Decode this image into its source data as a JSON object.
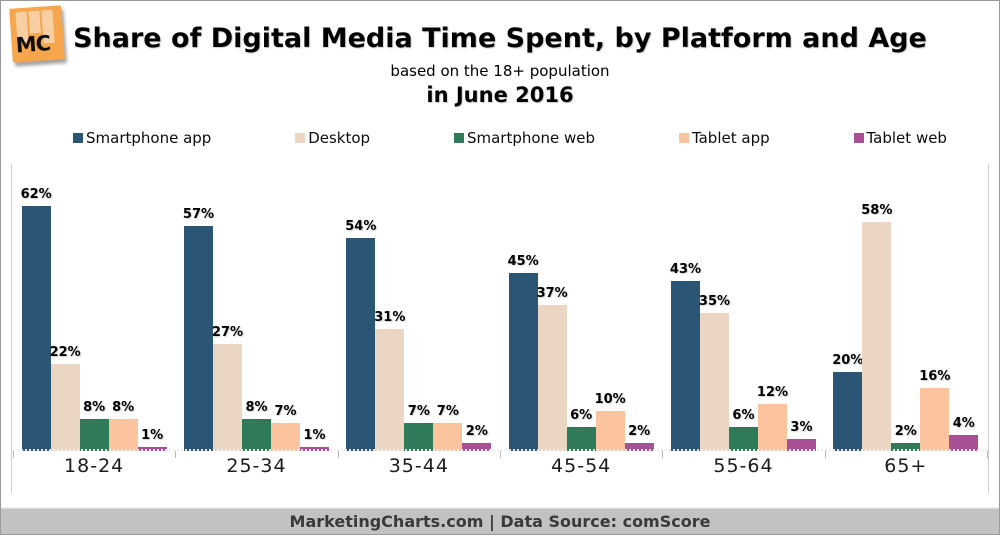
{
  "header": {
    "title": "Share of Digital Media Time Spent, by Platform and Age",
    "subtitle1": "based on the 18+ population",
    "subtitle2": "in June 2016"
  },
  "logo": {
    "text": "MC"
  },
  "chart_data": {
    "type": "bar",
    "title": "Share of Digital Media Time Spent, by Platform and Age",
    "categories": [
      "18-24",
      "25-34",
      "35-44",
      "45-54",
      "55-64",
      "65+"
    ],
    "series": [
      {
        "name": "Smartphone app",
        "color": "#2b5574",
        "values": [
          62,
          57,
          54,
          45,
          43,
          20
        ]
      },
      {
        "name": "Desktop",
        "color": "#ebd5c3",
        "values": [
          22,
          27,
          31,
          37,
          35,
          58
        ]
      },
      {
        "name": "Smartphone web",
        "color": "#2e7a59",
        "values": [
          8,
          8,
          7,
          6,
          6,
          2
        ]
      },
      {
        "name": "Tablet app",
        "color": "#fcc49e",
        "values": [
          8,
          7,
          7,
          10,
          12,
          16
        ]
      },
      {
        "name": "Tablet web",
        "color": "#a94f96",
        "values": [
          1,
          1,
          2,
          2,
          3,
          4
        ]
      }
    ],
    "value_suffix": "%",
    "xlabel": "",
    "ylabel": "",
    "ylim": [
      0,
      70
    ],
    "grid": false,
    "legend_position": "top",
    "value_labels_shown": true
  },
  "footer": {
    "text": "MarketingCharts.com | Data Source: comScore"
  }
}
